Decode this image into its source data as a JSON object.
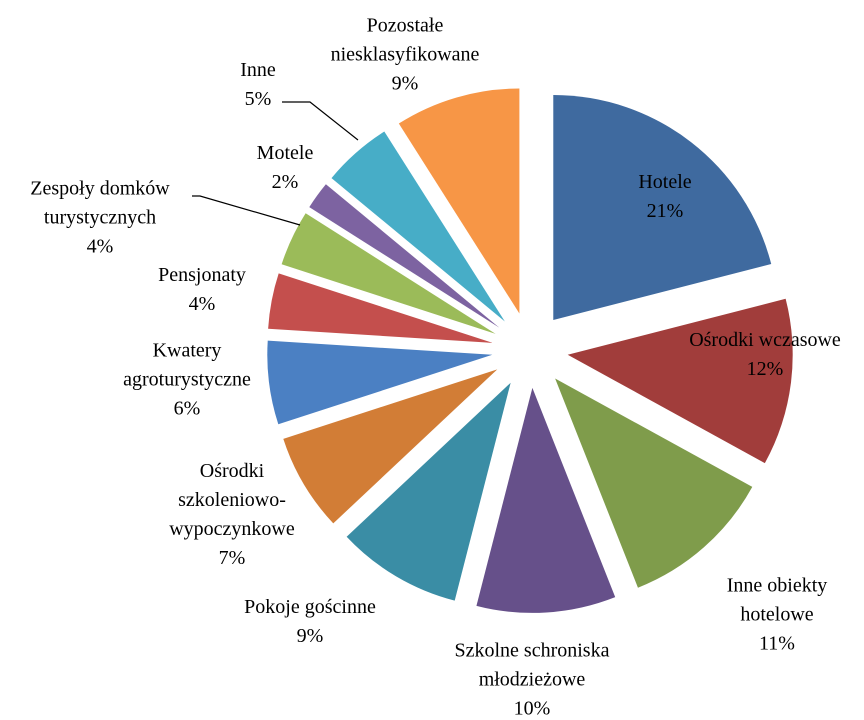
{
  "chart_data": {
    "type": "pie",
    "categories": [
      "Hotele",
      "Ośrodki wczasowe",
      "Inne obiekty hotelowe",
      "Szkolne schroniska młodzieżowe",
      "Pokoje gościnne",
      "Ośrodki szkoleniowo-wypoczynkowe",
      "Kwatery agroturystyczne",
      "Pensjonaty",
      "Zespoły domków turystycznych",
      "Motele",
      "Inne",
      "Pozostałe niesklasyfikowane"
    ],
    "values": [
      21,
      12,
      11,
      10,
      9,
      7,
      6,
      4,
      4,
      2,
      5,
      9
    ],
    "value_labels": [
      "21%",
      "12%",
      "11%",
      "10%",
      "9%",
      "7%",
      "6%",
      "4%",
      "4%",
      "2%",
      "5%",
      "9%"
    ],
    "colors": [
      "#3f6a9f",
      "#a13d3b",
      "#7f9c4b",
      "#66508a",
      "#3a8da5",
      "#d27d36",
      "#4b80c3",
      "#c44f4d",
      "#9bbb59",
      "#7d63a1",
      "#47adc7",
      "#f79646"
    ]
  }
}
